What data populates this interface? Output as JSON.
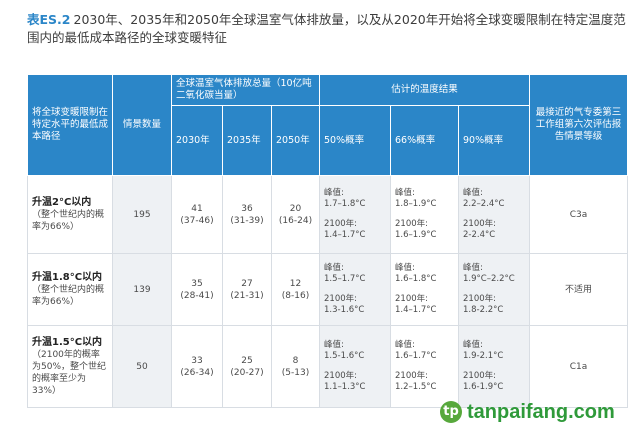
{
  "title": {
    "label": "表ES.2",
    "text": "2030年、2035年和2050年全球温室气体排放量，以及从2020年开始将全球变暖限制在特定温度范围内的最低成本路径的全球变暖特征"
  },
  "headers": {
    "scenario": "将全球变暖限制在特定水平的最低成本路径",
    "count": "情景数量",
    "emissions_group": "全球温室气体排放总量（10亿吨二氧化碳当量）",
    "warming_group": "估计的温度结果",
    "ipcc": "最接近的气专委第三工作组第六次评估报告情景等级",
    "years": [
      "2030年",
      "2035年",
      "2050年"
    ],
    "probs": [
      "50%概率",
      "66%概率",
      "90%概率"
    ]
  },
  "rows": [
    {
      "title": "升温2°C以内",
      "note": "（整个世纪内的概率为66%）",
      "count": "195",
      "e2030": {
        "v": "41",
        "r": "(37-46)"
      },
      "e2035": {
        "v": "36",
        "r": "(31-39)"
      },
      "e2050": {
        "v": "20",
        "r": "(16-24)"
      },
      "p50": {
        "peak_label": "峰值:",
        "peak": "1.7–1.8°C",
        "y2100_label": "2100年:",
        "y2100": "1.4–1.7°C"
      },
      "p66": {
        "peak_label": "峰值:",
        "peak": "1.8–1.9°C",
        "y2100_label": "2100年:",
        "y2100": "1.6–1.9°C"
      },
      "p90": {
        "peak_label": "峰值:",
        "peak": "2.2–2.4°C",
        "y2100_label": "2100年:",
        "y2100": "2-2.4°C"
      },
      "ipcc": "C3a"
    },
    {
      "title": "升温1.8°C以内",
      "note": "（整个世纪内的概率为66%）",
      "count": "139",
      "e2030": {
        "v": "35",
        "r": "(28-41)"
      },
      "e2035": {
        "v": "27",
        "r": "(21-31)"
      },
      "e2050": {
        "v": "12",
        "r": "(8-16)"
      },
      "p50": {
        "peak_label": "峰值:",
        "peak": "1.5–1.7°C",
        "y2100_label": "2100年:",
        "y2100": "1.3-1.6°C"
      },
      "p66": {
        "peak_label": "峰值:",
        "peak": "1.6–1.8°C",
        "y2100_label": "2100年:",
        "y2100": "1.4–1.7°C"
      },
      "p90": {
        "peak_label": "峰值:",
        "peak": "1.9°C–2.2°C",
        "y2100_label": "2100年:",
        "y2100": "1.8-2.2°C"
      },
      "ipcc": "不适用"
    },
    {
      "title": "升温1.5°C以内",
      "note": "（2100年的概率为50%，整个世纪的概率至少为33%）",
      "count": "50",
      "e2030": {
        "v": "33",
        "r": "(26-34)"
      },
      "e2035": {
        "v": "25",
        "r": "(20-27)"
      },
      "e2050": {
        "v": "8",
        "r": "(5-13)"
      },
      "p50": {
        "peak_label": "峰值:",
        "peak": "1.5-1.6°C",
        "y2100_label": "2100年:",
        "y2100": "1.1–1.3°C"
      },
      "p66": {
        "peak_label": "峰值:",
        "peak": "1.6–1.7°C",
        "y2100_label": "2100年:",
        "y2100": "1.2–1.5°C"
      },
      "p90": {
        "peak_label": "峰值:",
        "peak": "1.9-2.1°C",
        "y2100_label": "2100年:",
        "y2100": "1.6-1.9°C"
      },
      "ipcc": "C1a"
    }
  ],
  "watermark": {
    "logo": "tp",
    "text": "tanpaifang.com"
  },
  "colors": {
    "header_blue": "#2b86c8",
    "shade": "#eef1f4",
    "watermark_green": "#2f9a3a"
  }
}
